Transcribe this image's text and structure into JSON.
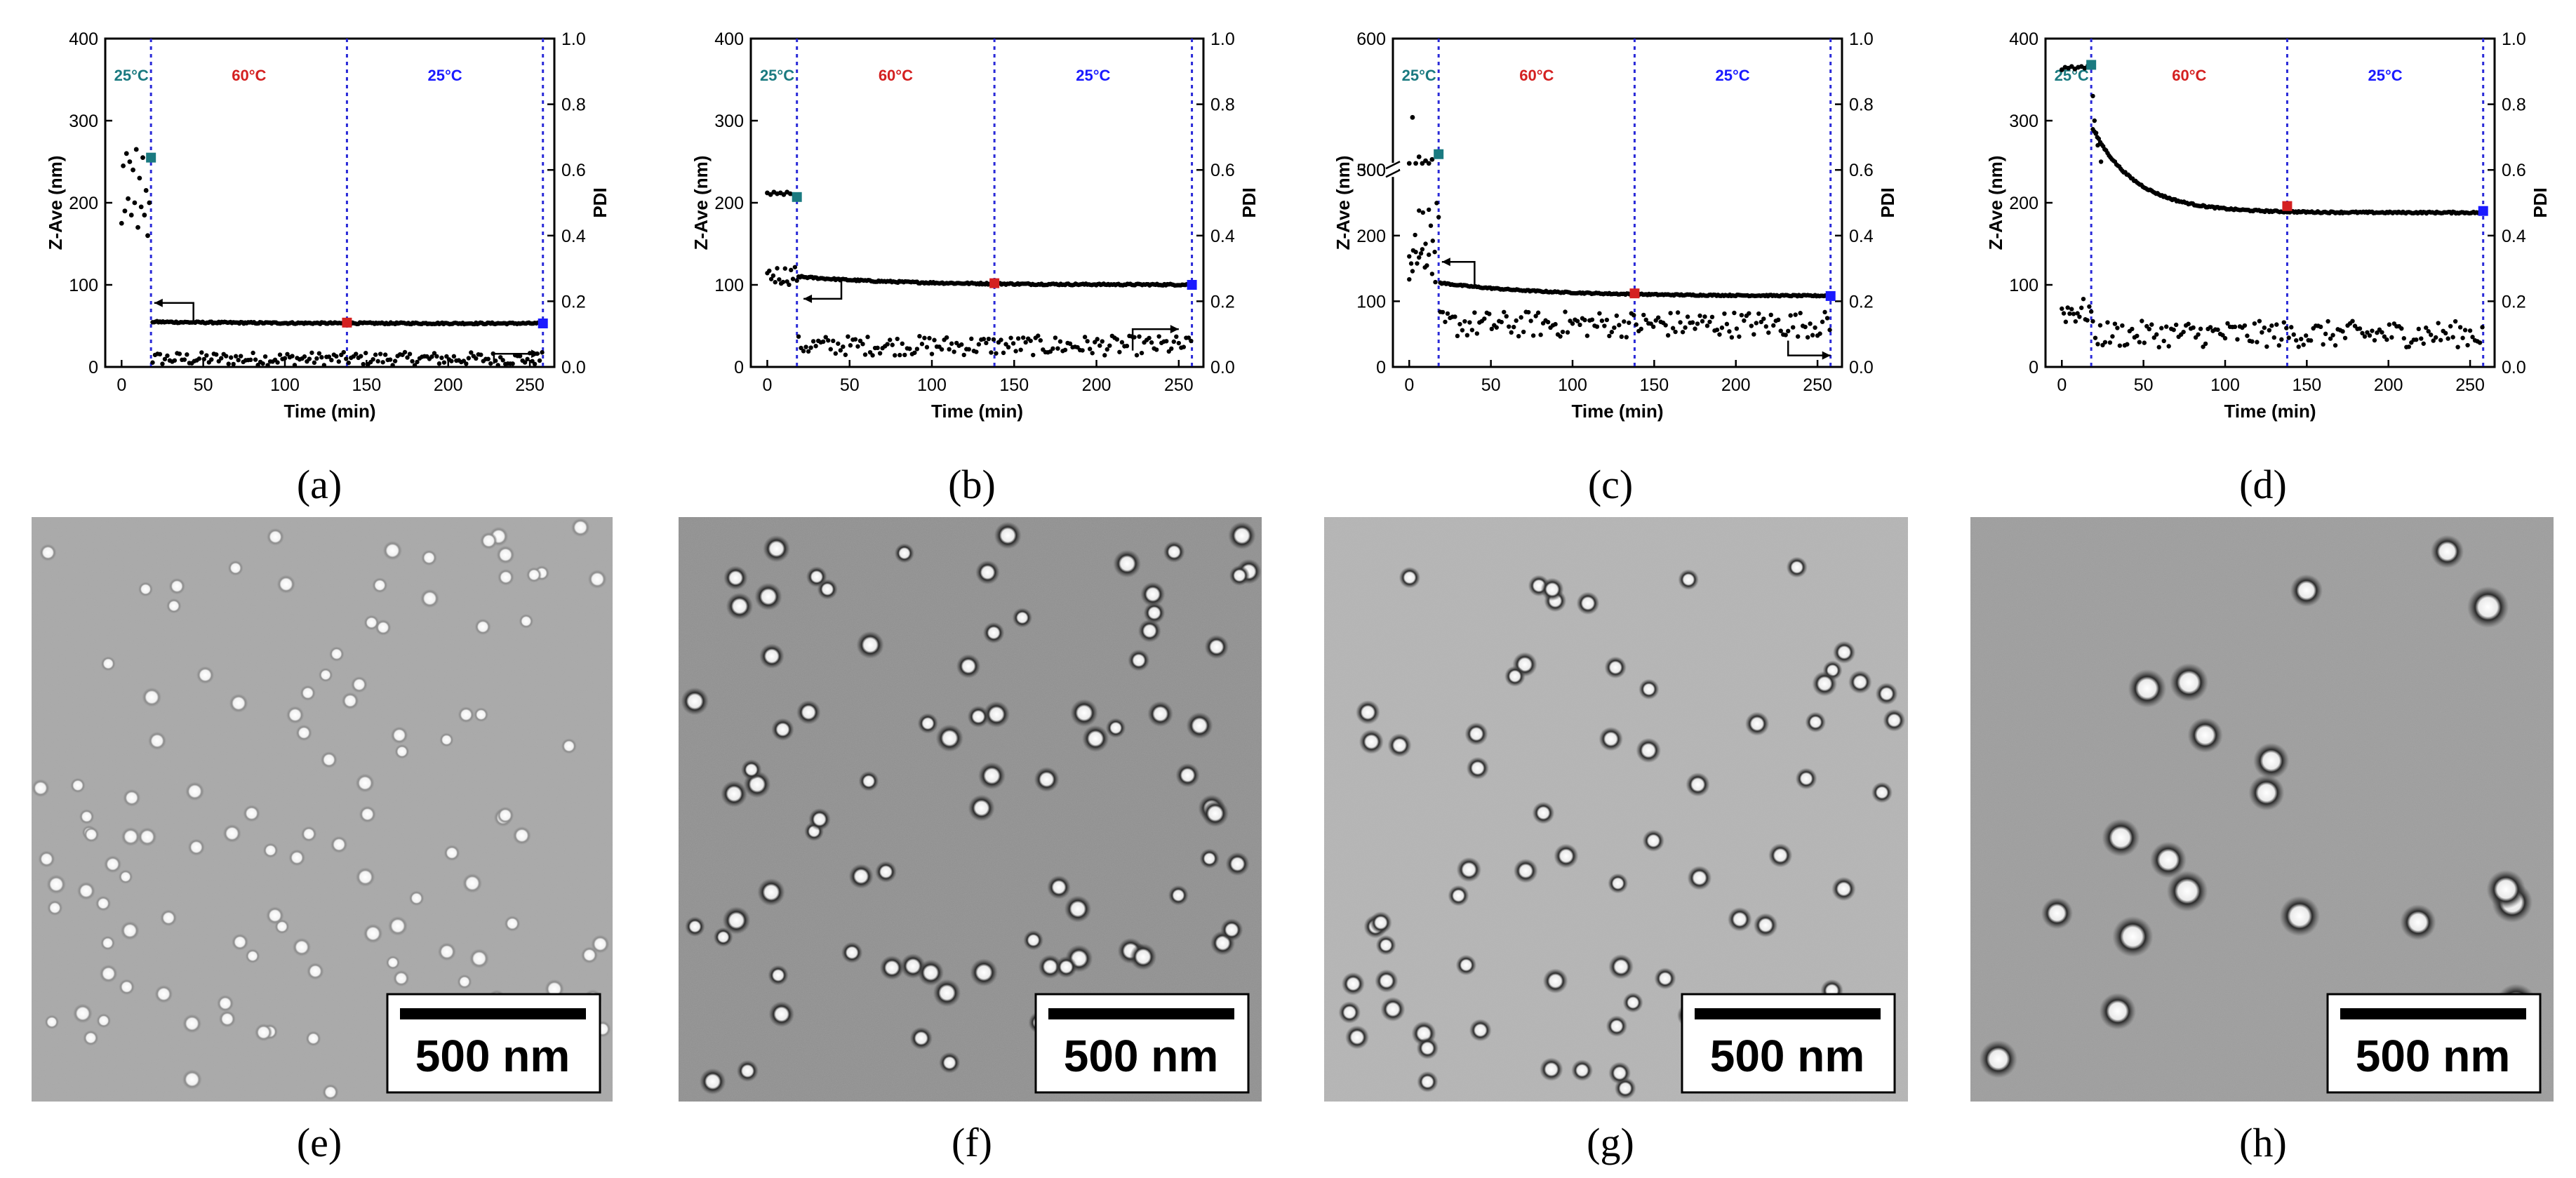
{
  "figure": {
    "labels": [
      "(a)",
      "(b)",
      "(c)",
      "(d)",
      "(e)",
      "(f)",
      "(g)",
      "(h)"
    ],
    "scale_bar_text": "500 nm"
  },
  "colors": {
    "teal": "#1a7a80",
    "red": "#d42020",
    "blue": "#1a1aff",
    "dots": "#000000",
    "vline": "#2a2ad8"
  },
  "chart_data": [
    {
      "type": "scatter",
      "panel": "a",
      "xlabel": "Time (min)",
      "ylabel": "Z-Ave (nm)",
      "y2label": "PDI",
      "xlim": [
        -10,
        265
      ],
      "ylim": [
        0,
        400
      ],
      "y2lim": [
        0,
        1.0
      ],
      "xticks": [
        0,
        50,
        100,
        150,
        200,
        250
      ],
      "yticks": [
        0,
        100,
        200,
        300,
        400
      ],
      "y2ticks": [
        0.0,
        0.2,
        0.4,
        0.6,
        0.8,
        1.0
      ],
      "phases": [
        {
          "label": "25°C",
          "x": 6,
          "color_key": "teal"
        },
        {
          "label": "60°C",
          "x": 78,
          "color_key": "red"
        },
        {
          "label": "25°C",
          "x": 198,
          "color_key": "blue"
        }
      ],
      "vlines": [
        18,
        138,
        258
      ],
      "zave": {
        "initial": [
          [
            0,
            175
          ],
          [
            1,
            245
          ],
          [
            2,
            190
          ],
          [
            3,
            260
          ],
          [
            4,
            205
          ],
          [
            5,
            250
          ],
          [
            6,
            185
          ],
          [
            7,
            240
          ],
          [
            8,
            200
          ],
          [
            9,
            265
          ],
          [
            10,
            170
          ],
          [
            11,
            230
          ],
          [
            12,
            195
          ],
          [
            13,
            255
          ],
          [
            14,
            185
          ],
          [
            15,
            215
          ],
          [
            16,
            160
          ],
          [
            17,
            200
          ]
        ],
        "main": {
          "start": 55,
          "end": 53
        },
        "markers": [
          {
            "x": 18,
            "y": 255,
            "color_key": "teal"
          },
          {
            "x": 138,
            "y": 54,
            "color_key": "red"
          },
          {
            "x": 258,
            "y": 53,
            "color_key": "blue"
          }
        ]
      },
      "pdi": {
        "mean": 0.025,
        "spread": 0.02,
        "initial_mean": 0.5,
        "initial_spread": 0.1
      },
      "arrows": [
        {
          "x1": 44,
          "y1": 55,
          "x2": 44,
          "y2": 78,
          "x3": 20,
          "y3": 78,
          "axis": "left"
        },
        {
          "x1": 228,
          "y1": 0.01,
          "x2": 228,
          "y2": 0.04,
          "x3": 256,
          "y3": 0.04,
          "axis": "right"
        }
      ]
    },
    {
      "type": "scatter",
      "panel": "b",
      "xlabel": "Time (min)",
      "ylabel": "Z-Ave (nm)",
      "y2label": "PDI",
      "xlim": [
        -10,
        265
      ],
      "ylim": [
        0,
        400
      ],
      "y2lim": [
        0,
        1.0
      ],
      "xticks": [
        0,
        50,
        100,
        150,
        200,
        250
      ],
      "yticks": [
        0,
        100,
        200,
        300,
        400
      ],
      "y2ticks": [
        0.0,
        0.2,
        0.4,
        0.6,
        0.8,
        1.0
      ],
      "phases": [
        {
          "label": "25°C",
          "x": 6,
          "color_key": "teal"
        },
        {
          "label": "60°C",
          "x": 78,
          "color_key": "red"
        },
        {
          "label": "25°C",
          "x": 198,
          "color_key": "blue"
        }
      ],
      "vlines": [
        18,
        138,
        258
      ],
      "zave": {
        "initial": [
          [
            0,
            212
          ],
          [
            2,
            210
          ],
          [
            4,
            213
          ],
          [
            6,
            211
          ],
          [
            8,
            212
          ],
          [
            10,
            210
          ],
          [
            12,
            213
          ],
          [
            14,
            211
          ],
          [
            16,
            210
          ]
        ],
        "main": {
          "start": 110,
          "end": 100
        },
        "markers": [
          {
            "x": 18,
            "y": 207,
            "color_key": "teal"
          },
          {
            "x": 138,
            "y": 102,
            "color_key": "red"
          },
          {
            "x": 258,
            "y": 100,
            "color_key": "blue"
          }
        ]
      },
      "pdi": {
        "mean": 0.065,
        "spread": 0.03,
        "initial_mean": 0.28,
        "initial_spread": 0.03
      },
      "arrows": [
        {
          "x1": 45,
          "y1": 107,
          "x2": 45,
          "y2": 83,
          "x3": 22,
          "y3": 83,
          "axis": "left"
        },
        {
          "x1": 222,
          "y1": 0.05,
          "x2": 222,
          "y2": 0.115,
          "x3": 250,
          "y3": 0.115,
          "axis": "right"
        }
      ]
    },
    {
      "type": "scatter",
      "panel": "c",
      "xlabel": "Time (min)",
      "ylabel": "Z-Ave (nm)",
      "y2label": "PDI",
      "xlim": [
        -10,
        265
      ],
      "ylim": [
        0,
        600
      ],
      "y2lim": [
        0,
        1.0
      ],
      "xticks": [
        0,
        50,
        100,
        150,
        200,
        250
      ],
      "yticks": [
        0,
        100,
        200,
        300,
        500,
        600
      ],
      "y2ticks": [
        0.0,
        0.2,
        0.4,
        0.6,
        0.8,
        1.0
      ],
      "phases": [
        {
          "label": "25°C",
          "x": 6,
          "color_key": "teal"
        },
        {
          "label": "60°C",
          "x": 78,
          "color_key": "red"
        },
        {
          "label": "25°C",
          "x": 198,
          "color_key": "blue"
        }
      ],
      "vlines": [
        18,
        138,
        258
      ],
      "zave": {
        "initial": [
          [
            0,
            505
          ],
          [
            2,
            540
          ],
          [
            4,
            505
          ],
          [
            6,
            510
          ],
          [
            8,
            505
          ],
          [
            10,
            507
          ],
          [
            12,
            505
          ],
          [
            14,
            508
          ]
        ],
        "main": {
          "start": 128,
          "end": 108
        },
        "markers": [
          {
            "x": 18,
            "y": 512,
            "color_key": "teal"
          },
          {
            "x": 138,
            "y": 112,
            "color_key": "red"
          },
          {
            "x": 258,
            "y": 108,
            "color_key": "blue"
          }
        ]
      },
      "pdi": {
        "mean": 0.13,
        "spread": 0.04,
        "initial_mean": 0.4,
        "initial_spread": 0.1
      },
      "arrows": [
        {
          "x1": 40,
          "y1": 124,
          "x2": 40,
          "y2": 160,
          "x3": 20,
          "y3": 160,
          "axis": "left"
        },
        {
          "x1": 232,
          "y1": 0.08,
          "x2": 232,
          "y2": 0.035,
          "x3": 258,
          "y3": 0.035,
          "axis": "right"
        }
      ]
    },
    {
      "type": "scatter",
      "panel": "d",
      "xlabel": "Time (min)",
      "ylabel": "Z-Ave (nm)",
      "y2label": "PDI",
      "xlim": [
        -10,
        265
      ],
      "ylim": [
        0,
        400
      ],
      "y2lim": [
        0,
        1.0
      ],
      "xticks": [
        0,
        50,
        100,
        150,
        200,
        250
      ],
      "yticks": [
        0,
        100,
        200,
        300,
        400
      ],
      "y2ticks": [
        0.0,
        0.2,
        0.4,
        0.6,
        0.8,
        1.0
      ],
      "phases": [
        {
          "label": "25°C",
          "x": 6,
          "color_key": "teal"
        },
        {
          "label": "60°C",
          "x": 78,
          "color_key": "red"
        },
        {
          "label": "25°C",
          "x": 198,
          "color_key": "blue"
        }
      ],
      "vlines": [
        18,
        138,
        258
      ],
      "zave": {
        "initial": [
          [
            0,
            362
          ],
          [
            2,
            365
          ],
          [
            4,
            364
          ],
          [
            6,
            366
          ],
          [
            8,
            363
          ],
          [
            10,
            365
          ],
          [
            12,
            366
          ],
          [
            14,
            364
          ],
          [
            16,
            367
          ]
        ],
        "main": {
          "start": 290,
          "end": 188
        },
        "markers": [
          {
            "x": 18,
            "y": 368,
            "color_key": "teal"
          },
          {
            "x": 138,
            "y": 196,
            "color_key": "red"
          },
          {
            "x": 258,
            "y": 190,
            "color_key": "blue"
          }
        ]
      },
      "pdi": {
        "mean": 0.1,
        "spread": 0.04,
        "initial_mean": 0.17,
        "initial_spread": 0.04
      },
      "arrows": []
    }
  ]
}
